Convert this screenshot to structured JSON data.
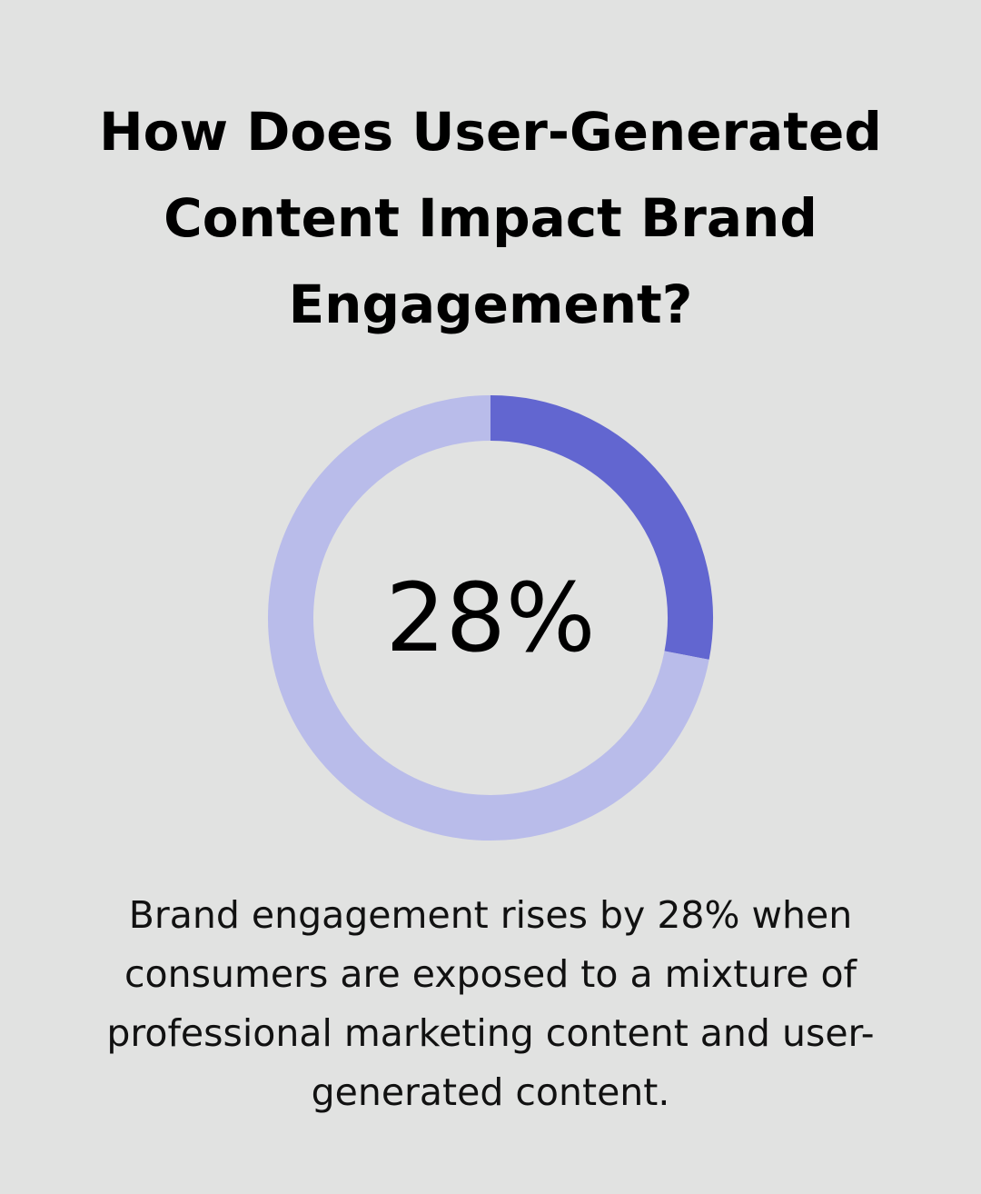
{
  "chart_data": {
    "type": "donut",
    "title": "How Does User-Generated Content Impact Brand Engagement?",
    "values": [
      28,
      72
    ],
    "value_labels": [
      "28%",
      null
    ],
    "colors": [
      "#6266d0",
      "#b9bcea"
    ],
    "caption": "Brand engagement rises by 28% when consumers are exposed to a mixture of professional marketing content and user-generated content."
  }
}
